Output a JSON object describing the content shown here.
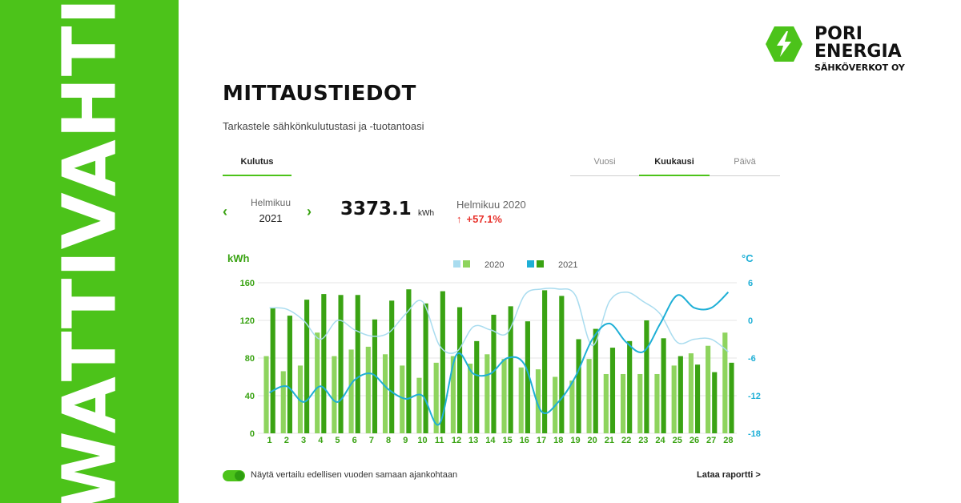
{
  "side_banner": {
    "text": "WATTIVAHTI",
    "color": "#4cc31a"
  },
  "brand": {
    "logo_icon": "lightning-hexagon-icon",
    "line1": "PORI",
    "line2": "ENERGIA",
    "line3": "SÄHKÖVERKOT OY"
  },
  "page": {
    "title": "MITTAUSTIEDOT",
    "subtitle": "Tarkastele sähkönkulutustasi ja -tuotantoasi"
  },
  "tabs": {
    "primary": "Kulutus",
    "period_tabs": [
      "Vuosi",
      "Kuukausi",
      "Päivä"
    ],
    "active_period": "Kuukausi"
  },
  "period": {
    "month": "Helmikuu",
    "year": "2021",
    "prev_icon": "chevron-left-icon",
    "next_icon": "chevron-right-icon"
  },
  "total": {
    "value": "3373.1",
    "unit": "kWh"
  },
  "comparison": {
    "label": "Helmikuu 2020",
    "arrow": "↑",
    "change": "+57.1%"
  },
  "chart_data": {
    "type": "bar",
    "y_left_label": "kWh",
    "y_right_label": "°C",
    "ylim_left": [
      0,
      160
    ],
    "ylim_right": [
      -18,
      6
    ],
    "left_ticks": [
      "0",
      "40",
      "80",
      "120",
      "160"
    ],
    "right_ticks": [
      "-18",
      "-12",
      "-6",
      "0",
      "6"
    ],
    "categories": [
      "1",
      "2",
      "3",
      "4",
      "5",
      "6",
      "7",
      "8",
      "9",
      "10",
      "11",
      "12",
      "13",
      "14",
      "15",
      "16",
      "17",
      "18",
      "19",
      "20",
      "21",
      "22",
      "23",
      "24",
      "25",
      "26",
      "27",
      "28"
    ],
    "legend": [
      {
        "name": "2020",
        "bar_color": "#8ed45e",
        "line_color": "#a9dcef"
      },
      {
        "name": "2021",
        "bar_color": "#3aa313",
        "line_color": "#1eafd6"
      }
    ],
    "series": [
      {
        "name": "2020",
        "kind": "bar",
        "axis": "left",
        "values": [
          82,
          66,
          72,
          107,
          82,
          89,
          92,
          84,
          72,
          59,
          75,
          82,
          74,
          84,
          79,
          70,
          68,
          60,
          56,
          79,
          63,
          63,
          63,
          63,
          72,
          85,
          93,
          107
        ]
      },
      {
        "name": "2021",
        "kind": "bar",
        "axis": "left",
        "values": [
          133,
          125,
          142,
          148,
          147,
          147,
          121,
          141,
          153,
          138,
          151,
          134,
          98,
          126,
          135,
          119,
          152,
          146,
          100,
          111,
          91,
          98,
          120,
          101,
          82,
          73,
          65,
          75
        ]
      },
      {
        "name": "2020",
        "kind": "line",
        "axis": "right",
        "values": [
          2,
          1.8,
          0,
          -3,
          0,
          -1.5,
          -2.5,
          -2,
          1,
          3,
          -4,
          -5,
          -1,
          -1.5,
          -2,
          4,
          5,
          5,
          4,
          -4,
          3,
          4.5,
          3,
          1,
          -3.5,
          -3,
          -3,
          -5
        ]
      },
      {
        "name": "2021",
        "kind": "line",
        "axis": "right",
        "values": [
          -11.5,
          -10.5,
          -13,
          -10.5,
          -13,
          -9.5,
          -8.5,
          -11,
          -12.5,
          -12,
          -16.5,
          -5.5,
          -8.5,
          -8.5,
          -6,
          -7,
          -14.5,
          -13,
          -9,
          -3,
          -0.5,
          -3.5,
          -5,
          -0.5,
          4,
          2,
          2,
          4.5
        ]
      }
    ],
    "grid": true
  },
  "footer": {
    "toggle_label": "Näytä vertailu edellisen vuoden samaan ajankohtaan",
    "download_label": "Lataa raportti >"
  }
}
